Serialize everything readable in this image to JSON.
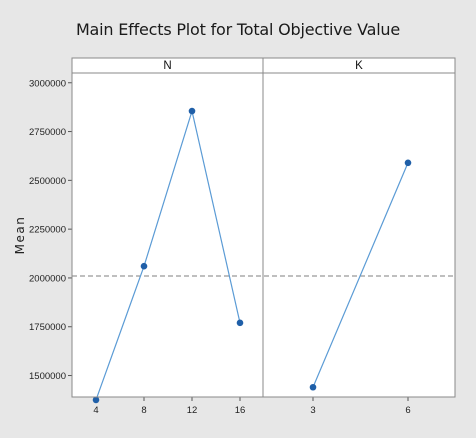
{
  "chart_data": {
    "type": "line",
    "title": "Main Effects Plot for Total Objective Value",
    "ylabel": "Mean",
    "ylim": [
      1390000,
      3050000
    ],
    "yticks": [
      1500000,
      1750000,
      2000000,
      2250000,
      2500000,
      2750000,
      3000000
    ],
    "reference_line": 2010000,
    "panels": [
      {
        "name": "N",
        "categories": [
          "4",
          "8",
          "12",
          "16"
        ],
        "values": [
          1375000,
          2060000,
          2855000,
          1770000
        ]
      },
      {
        "name": "K",
        "categories": [
          "3",
          "6"
        ],
        "values": [
          1440000,
          2590000
        ]
      }
    ],
    "colors": {
      "line": "#5b9bd5",
      "marker": "#1f5fa8",
      "reference": "#7f7f7f",
      "background": "#e7e7e7",
      "panel": "#ffffff"
    }
  }
}
